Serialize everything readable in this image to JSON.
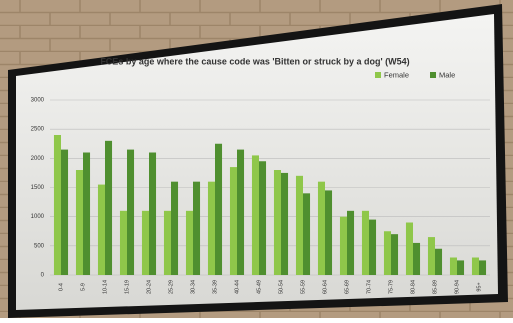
{
  "chart_data": {
    "type": "bar",
    "title": "FCEs by age where the cause code was 'Bitten or struck by a dog' (W54)",
    "categories": [
      "0-4",
      "5-9",
      "10-14",
      "15-19",
      "20-24",
      "25-29",
      "30-34",
      "35-39",
      "40-44",
      "45-49",
      "50-54",
      "55-59",
      "60-64",
      "65-69",
      "70-74",
      "75-79",
      "80-84",
      "85-89",
      "90-94",
      "95+"
    ],
    "series": [
      {
        "name": "Female",
        "color": "#8fc74a",
        "values": [
          2400,
          1800,
          1550,
          1100,
          1100,
          1100,
          1100,
          1600,
          1850,
          2050,
          1800,
          1700,
          1600,
          1000,
          1100,
          750,
          900,
          650,
          300,
          300
        ]
      },
      {
        "name": "Male",
        "color": "#4f8f2f",
        "values": [
          2150,
          2100,
          2300,
          2150,
          2100,
          1600,
          1600,
          2250,
          2150,
          1950,
          1750,
          1400,
          1450,
          1100,
          950,
          700,
          550,
          450,
          250,
          250
        ]
      }
    ],
    "ylim": [
      0,
      3000
    ],
    "yticks": [
      0,
      500,
      1000,
      1500,
      2000,
      2500,
      3000
    ],
    "grid": true,
    "legend": "top-right"
  }
}
